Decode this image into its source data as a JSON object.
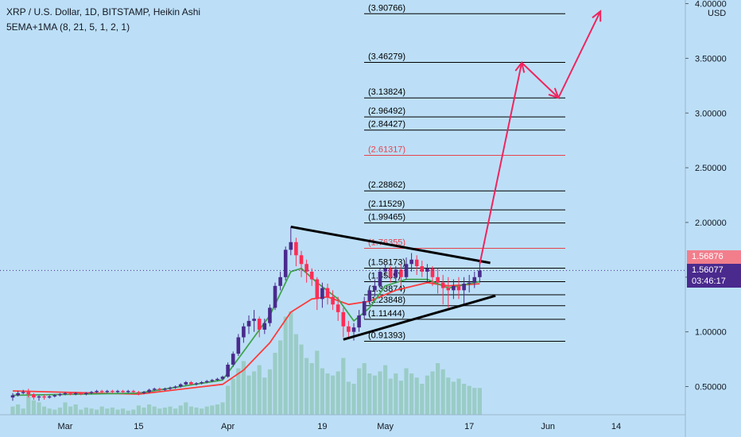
{
  "header": {
    "title": "XRP / U.S. Dollar, 1D, BITSTAMP, Heikin Ashi",
    "indicator": "5EMA+1MA (8, 21, 5, 1, 2, 1)"
  },
  "price_tags": {
    "red": "1.56876",
    "last": "1.56077",
    "countdown": "03:46:17"
  },
  "colors": {
    "background": "#bcdff7",
    "bull": "#4a2a8d",
    "bear": "#ff2d55",
    "ema_fast": "#3fa34d",
    "ema_slow": "#ff3b3b",
    "volume": "#8fc5b6",
    "arrow": "#f0245e",
    "level_highlight": "#e8424e",
    "trendline": "#000000"
  },
  "chart_data": {
    "type": "candlestick",
    "symbol": "XRP / U.S. Dollar",
    "timeframe": "1D",
    "exchange": "BITSTAMP",
    "candle_style": "Heikin Ashi",
    "currency_label": "USD",
    "y_axis": {
      "scale": "linear",
      "ticks": [
        "0.50000",
        "1.00000",
        "1.50000",
        "2.00000",
        "2.50000",
        "3.00000",
        "3.50000",
        "4.00000"
      ],
      "ylim": [
        0.2,
        4.05
      ]
    },
    "x_axis": {
      "ticks": [
        "Mar",
        "15",
        "Apr",
        "19",
        "May",
        "17",
        "Jun",
        "14"
      ],
      "xlim": [
        "2021-02-19",
        "2021-06-22"
      ]
    },
    "ohlc": [
      {
        "date": "2021-02-19",
        "o": 0.4,
        "h": 0.44,
        "l": 0.37,
        "c": 0.42
      },
      {
        "date": "2021-02-20",
        "o": 0.42,
        "h": 0.46,
        "l": 0.41,
        "c": 0.44
      },
      {
        "date": "2021-02-21",
        "o": 0.44,
        "h": 0.47,
        "l": 0.43,
        "c": 0.45
      },
      {
        "date": "2021-02-22",
        "o": 0.45,
        "h": 0.48,
        "l": 0.4,
        "c": 0.43
      },
      {
        "date": "2021-02-23",
        "o": 0.43,
        "h": 0.44,
        "l": 0.38,
        "c": 0.4
      },
      {
        "date": "2021-02-24",
        "o": 0.4,
        "h": 0.42,
        "l": 0.37,
        "c": 0.41
      },
      {
        "date": "2021-02-25",
        "o": 0.41,
        "h": 0.43,
        "l": 0.38,
        "c": 0.4
      },
      {
        "date": "2021-02-26",
        "o": 0.4,
        "h": 0.42,
        "l": 0.39,
        "c": 0.41
      },
      {
        "date": "2021-02-27",
        "o": 0.41,
        "h": 0.43,
        "l": 0.4,
        "c": 0.42
      },
      {
        "date": "2021-02-28",
        "o": 0.42,
        "h": 0.44,
        "l": 0.41,
        "c": 0.43
      },
      {
        "date": "2021-03-01",
        "o": 0.43,
        "h": 0.45,
        "l": 0.42,
        "c": 0.44
      },
      {
        "date": "2021-03-02",
        "o": 0.44,
        "h": 0.45,
        "l": 0.42,
        "c": 0.43
      },
      {
        "date": "2021-03-03",
        "o": 0.43,
        "h": 0.45,
        "l": 0.42,
        "c": 0.44
      },
      {
        "date": "2021-03-04",
        "o": 0.44,
        "h": 0.45,
        "l": 0.42,
        "c": 0.43
      },
      {
        "date": "2021-03-05",
        "o": 0.43,
        "h": 0.45,
        "l": 0.42,
        "c": 0.44
      },
      {
        "date": "2021-03-06",
        "o": 0.44,
        "h": 0.46,
        "l": 0.43,
        "c": 0.45
      },
      {
        "date": "2021-03-07",
        "o": 0.45,
        "h": 0.47,
        "l": 0.44,
        "c": 0.46
      },
      {
        "date": "2021-03-08",
        "o": 0.46,
        "h": 0.47,
        "l": 0.44,
        "c": 0.45
      },
      {
        "date": "2021-03-09",
        "o": 0.45,
        "h": 0.47,
        "l": 0.44,
        "c": 0.46
      },
      {
        "date": "2021-03-10",
        "o": 0.46,
        "h": 0.47,
        "l": 0.44,
        "c": 0.45
      },
      {
        "date": "2021-03-11",
        "o": 0.45,
        "h": 0.47,
        "l": 0.44,
        "c": 0.46
      },
      {
        "date": "2021-03-12",
        "o": 0.46,
        "h": 0.47,
        "l": 0.44,
        "c": 0.45
      },
      {
        "date": "2021-03-13",
        "o": 0.45,
        "h": 0.47,
        "l": 0.44,
        "c": 0.46
      },
      {
        "date": "2021-03-14",
        "o": 0.46,
        "h": 0.47,
        "l": 0.44,
        "c": 0.45
      },
      {
        "date": "2021-03-15",
        "o": 0.45,
        "h": 0.46,
        "l": 0.42,
        "c": 0.44
      },
      {
        "date": "2021-03-16",
        "o": 0.44,
        "h": 0.46,
        "l": 0.43,
        "c": 0.45
      },
      {
        "date": "2021-03-17",
        "o": 0.45,
        "h": 0.48,
        "l": 0.44,
        "c": 0.47
      },
      {
        "date": "2021-03-18",
        "o": 0.47,
        "h": 0.49,
        "l": 0.46,
        "c": 0.48
      },
      {
        "date": "2021-03-19",
        "o": 0.48,
        "h": 0.49,
        "l": 0.46,
        "c": 0.47
      },
      {
        "date": "2021-03-20",
        "o": 0.47,
        "h": 0.49,
        "l": 0.46,
        "c": 0.48
      },
      {
        "date": "2021-03-21",
        "o": 0.48,
        "h": 0.5,
        "l": 0.47,
        "c": 0.49
      },
      {
        "date": "2021-03-22",
        "o": 0.49,
        "h": 0.51,
        "l": 0.48,
        "c": 0.5
      },
      {
        "date": "2021-03-23",
        "o": 0.5,
        "h": 0.53,
        "l": 0.49,
        "c": 0.52
      },
      {
        "date": "2021-03-24",
        "o": 0.52,
        "h": 0.55,
        "l": 0.51,
        "c": 0.54
      },
      {
        "date": "2021-03-25",
        "o": 0.54,
        "h": 0.55,
        "l": 0.51,
        "c": 0.52
      },
      {
        "date": "2021-03-26",
        "o": 0.52,
        "h": 0.54,
        "l": 0.51,
        "c": 0.53
      },
      {
        "date": "2021-03-27",
        "o": 0.53,
        "h": 0.55,
        "l": 0.52,
        "c": 0.54
      },
      {
        "date": "2021-03-28",
        "o": 0.54,
        "h": 0.56,
        "l": 0.53,
        "c": 0.55
      },
      {
        "date": "2021-03-29",
        "o": 0.55,
        "h": 0.57,
        "l": 0.54,
        "c": 0.56
      },
      {
        "date": "2021-03-30",
        "o": 0.56,
        "h": 0.58,
        "l": 0.55,
        "c": 0.57
      },
      {
        "date": "2021-03-31",
        "o": 0.57,
        "h": 0.6,
        "l": 0.56,
        "c": 0.59
      },
      {
        "date": "2021-04-01",
        "o": 0.59,
        "h": 0.72,
        "l": 0.58,
        "c": 0.7
      },
      {
        "date": "2021-04-02",
        "o": 0.7,
        "h": 0.82,
        "l": 0.68,
        "c": 0.8
      },
      {
        "date": "2021-04-03",
        "o": 0.8,
        "h": 0.98,
        "l": 0.78,
        "c": 0.95
      },
      {
        "date": "2021-04-04",
        "o": 0.95,
        "h": 1.08,
        "l": 0.9,
        "c": 1.05
      },
      {
        "date": "2021-04-05",
        "o": 1.05,
        "h": 1.15,
        "l": 0.98,
        "c": 1.1
      },
      {
        "date": "2021-04-06",
        "o": 1.1,
        "h": 1.2,
        "l": 1.0,
        "c": 1.12
      },
      {
        "date": "2021-04-07",
        "o": 1.12,
        "h": 1.14,
        "l": 0.95,
        "c": 1.02
      },
      {
        "date": "2021-04-08",
        "o": 1.02,
        "h": 1.12,
        "l": 0.98,
        "c": 1.08
      },
      {
        "date": "2021-04-09",
        "o": 1.08,
        "h": 1.25,
        "l": 1.05,
        "c": 1.22
      },
      {
        "date": "2021-04-10",
        "o": 1.22,
        "h": 1.45,
        "l": 1.2,
        "c": 1.42
      },
      {
        "date": "2021-04-11",
        "o": 1.42,
        "h": 1.55,
        "l": 1.38,
        "c": 1.5
      },
      {
        "date": "2021-04-12",
        "o": 1.5,
        "h": 1.78,
        "l": 1.47,
        "c": 1.75
      },
      {
        "date": "2021-04-13",
        "o": 1.75,
        "h": 1.96,
        "l": 1.7,
        "c": 1.82
      },
      {
        "date": "2021-04-14",
        "o": 1.82,
        "h": 1.86,
        "l": 1.6,
        "c": 1.7
      },
      {
        "date": "2021-04-15",
        "o": 1.7,
        "h": 1.74,
        "l": 1.5,
        "c": 1.62
      },
      {
        "date": "2021-04-16",
        "o": 1.62,
        "h": 1.66,
        "l": 1.45,
        "c": 1.55
      },
      {
        "date": "2021-04-17",
        "o": 1.55,
        "h": 1.58,
        "l": 1.42,
        "c": 1.48
      },
      {
        "date": "2021-04-18",
        "o": 1.48,
        "h": 1.5,
        "l": 1.2,
        "c": 1.3
      },
      {
        "date": "2021-04-19",
        "o": 1.3,
        "h": 1.45,
        "l": 1.22,
        "c": 1.4
      },
      {
        "date": "2021-04-20",
        "o": 1.4,
        "h": 1.44,
        "l": 1.25,
        "c": 1.32
      },
      {
        "date": "2021-04-21",
        "o": 1.32,
        "h": 1.38,
        "l": 1.2,
        "c": 1.25
      },
      {
        "date": "2021-04-22",
        "o": 1.25,
        "h": 1.32,
        "l": 1.1,
        "c": 1.18
      },
      {
        "date": "2021-04-23",
        "o": 1.18,
        "h": 1.22,
        "l": 0.95,
        "c": 1.05
      },
      {
        "date": "2021-04-24",
        "o": 1.05,
        "h": 1.1,
        "l": 0.94,
        "c": 1.0
      },
      {
        "date": "2021-04-25",
        "o": 1.0,
        "h": 1.08,
        "l": 0.92,
        "c": 1.04
      },
      {
        "date": "2021-04-26",
        "o": 1.04,
        "h": 1.2,
        "l": 1.0,
        "c": 1.15
      },
      {
        "date": "2021-04-27",
        "o": 1.15,
        "h": 1.32,
        "l": 1.12,
        "c": 1.28
      },
      {
        "date": "2021-04-28",
        "o": 1.28,
        "h": 1.42,
        "l": 1.25,
        "c": 1.38
      },
      {
        "date": "2021-04-29",
        "o": 1.38,
        "h": 1.48,
        "l": 1.32,
        "c": 1.42
      },
      {
        "date": "2021-04-30",
        "o": 1.42,
        "h": 1.58,
        "l": 1.4,
        "c": 1.55
      },
      {
        "date": "2021-05-01",
        "o": 1.55,
        "h": 1.62,
        "l": 1.5,
        "c": 1.58
      },
      {
        "date": "2021-05-02",
        "o": 1.58,
        "h": 1.6,
        "l": 1.45,
        "c": 1.5
      },
      {
        "date": "2021-05-03",
        "o": 1.5,
        "h": 1.6,
        "l": 1.45,
        "c": 1.57
      },
      {
        "date": "2021-05-04",
        "o": 1.57,
        "h": 1.62,
        "l": 1.42,
        "c": 1.5
      },
      {
        "date": "2021-05-05",
        "o": 1.5,
        "h": 1.68,
        "l": 1.48,
        "c": 1.62
      },
      {
        "date": "2021-05-06",
        "o": 1.62,
        "h": 1.72,
        "l": 1.55,
        "c": 1.66
      },
      {
        "date": "2021-05-07",
        "o": 1.66,
        "h": 1.7,
        "l": 1.52,
        "c": 1.6
      },
      {
        "date": "2021-05-08",
        "o": 1.6,
        "h": 1.65,
        "l": 1.5,
        "c": 1.55
      },
      {
        "date": "2021-05-09",
        "o": 1.55,
        "h": 1.62,
        "l": 1.45,
        "c": 1.58
      },
      {
        "date": "2021-05-10",
        "o": 1.58,
        "h": 1.6,
        "l": 1.42,
        "c": 1.5
      },
      {
        "date": "2021-05-11",
        "o": 1.5,
        "h": 1.58,
        "l": 1.35,
        "c": 1.45
      },
      {
        "date": "2021-05-12",
        "o": 1.45,
        "h": 1.52,
        "l": 1.25,
        "c": 1.4
      },
      {
        "date": "2021-05-13",
        "o": 1.4,
        "h": 1.5,
        "l": 1.22,
        "c": 1.38
      },
      {
        "date": "2021-05-14",
        "o": 1.38,
        "h": 1.48,
        "l": 1.3,
        "c": 1.42
      },
      {
        "date": "2021-05-15",
        "o": 1.42,
        "h": 1.5,
        "l": 1.3,
        "c": 1.38
      },
      {
        "date": "2021-05-16",
        "o": 1.38,
        "h": 1.5,
        "l": 1.25,
        "c": 1.44
      },
      {
        "date": "2021-05-17",
        "o": 1.44,
        "h": 1.52,
        "l": 1.36,
        "c": 1.45
      },
      {
        "date": "2021-05-18",
        "o": 1.45,
        "h": 1.55,
        "l": 1.4,
        "c": 1.5
      },
      {
        "date": "2021-05-19",
        "o": 1.5,
        "h": 1.62,
        "l": 1.45,
        "c": 1.56
      }
    ],
    "ema_fast": [
      {
        "date": "2021-02-19",
        "value": 0.42
      },
      {
        "date": "2021-03-15",
        "value": 0.44
      },
      {
        "date": "2021-03-31",
        "value": 0.56
      },
      {
        "date": "2021-04-04",
        "value": 0.82
      },
      {
        "date": "2021-04-09",
        "value": 1.15
      },
      {
        "date": "2021-04-11",
        "value": 1.35
      },
      {
        "date": "2021-04-13",
        "value": 1.55
      },
      {
        "date": "2021-04-15",
        "value": 1.58
      },
      {
        "date": "2021-04-18",
        "value": 1.45
      },
      {
        "date": "2021-04-22",
        "value": 1.3
      },
      {
        "date": "2021-04-25",
        "value": 1.1
      },
      {
        "date": "2021-04-28",
        "value": 1.22
      },
      {
        "date": "2021-05-01",
        "value": 1.42
      },
      {
        "date": "2021-05-05",
        "value": 1.48
      },
      {
        "date": "2021-05-09",
        "value": 1.48
      },
      {
        "date": "2021-05-13",
        "value": 1.4
      },
      {
        "date": "2021-05-19",
        "value": 1.46
      }
    ],
    "ema_slow": [
      {
        "date": "2021-02-19",
        "value": 0.46
      },
      {
        "date": "2021-03-15",
        "value": 0.43
      },
      {
        "date": "2021-03-31",
        "value": 0.52
      },
      {
        "date": "2021-04-04",
        "value": 0.65
      },
      {
        "date": "2021-04-09",
        "value": 0.9
      },
      {
        "date": "2021-04-13",
        "value": 1.18
      },
      {
        "date": "2021-04-17",
        "value": 1.3
      },
      {
        "date": "2021-04-20",
        "value": 1.32
      },
      {
        "date": "2021-04-24",
        "value": 1.25
      },
      {
        "date": "2021-04-28",
        "value": 1.28
      },
      {
        "date": "2021-05-03",
        "value": 1.38
      },
      {
        "date": "2021-05-09",
        "value": 1.45
      },
      {
        "date": "2021-05-13",
        "value": 1.42
      },
      {
        "date": "2021-05-19",
        "value": 1.44
      }
    ],
    "volume": [
      0.08,
      0.1,
      0.06,
      0.22,
      0.14,
      0.12,
      0.08,
      0.06,
      0.05,
      0.07,
      0.12,
      0.08,
      0.1,
      0.05,
      0.07,
      0.06,
      0.05,
      0.08,
      0.06,
      0.07,
      0.05,
      0.06,
      0.04,
      0.05,
      0.09,
      0.07,
      0.1,
      0.08,
      0.06,
      0.07,
      0.08,
      0.06,
      0.09,
      0.12,
      0.08,
      0.07,
      0.06,
      0.08,
      0.09,
      0.1,
      0.12,
      0.28,
      0.35,
      0.45,
      0.52,
      0.38,
      0.42,
      0.48,
      0.36,
      0.44,
      0.6,
      0.72,
      0.95,
      1.0,
      0.78,
      0.68,
      0.55,
      0.5,
      0.62,
      0.45,
      0.4,
      0.38,
      0.42,
      0.55,
      0.32,
      0.3,
      0.45,
      0.5,
      0.4,
      0.38,
      0.42,
      0.48,
      0.35,
      0.4,
      0.33,
      0.45,
      0.4,
      0.36,
      0.3,
      0.38,
      0.42,
      0.5,
      0.44,
      0.36,
      0.32,
      0.35,
      0.3,
      0.28,
      0.26,
      0.26
    ],
    "horizontal_levels": [
      {
        "value": 3.90766,
        "label": "(3.90766)"
      },
      {
        "value": 3.46279,
        "label": "(3.46279)"
      },
      {
        "value": 3.13824,
        "label": "(3.13824)"
      },
      {
        "value": 2.96492,
        "label": "(2.96492)"
      },
      {
        "value": 2.84427,
        "label": "(2.84427)"
      },
      {
        "value": 2.61317,
        "label": "(2.61317)",
        "highlight": true
      },
      {
        "value": 2.28862,
        "label": "(2.28862)"
      },
      {
        "value": 2.11529,
        "label": "(2.11529)"
      },
      {
        "value": 1.99465,
        "label": "(1.99465)"
      },
      {
        "value": 1.76355,
        "label": "(1.76355)",
        "highlight": true
      },
      {
        "value": 1.58173,
        "label": "(1.58173)"
      },
      {
        "value": 1.4589,
        "label": "(1.4589)"
      },
      {
        "value": 1.33874,
        "label": "(1.33874)"
      },
      {
        "value": 1.23848,
        "label": "(1.23848)"
      },
      {
        "value": 1.11444,
        "label": "(1.11444)"
      },
      {
        "value": 0.91393,
        "label": "(0.91393)"
      }
    ],
    "trendlines": [
      {
        "from": {
          "date": "2021-04-13",
          "value": 1.96
        },
        "to": {
          "date": "2021-05-21",
          "value": 1.63
        }
      },
      {
        "from": {
          "date": "2021-04-23",
          "value": 0.93
        },
        "to": {
          "date": "2021-05-22",
          "value": 1.33
        }
      }
    ],
    "projection_path": [
      {
        "date": "2021-05-19",
        "value": 1.62
      },
      {
        "date": "2021-05-27",
        "value": 3.46
      },
      {
        "date": "2021-06-03",
        "value": 3.14
      },
      {
        "date": "2021-06-11",
        "value": 3.93
      }
    ]
  }
}
